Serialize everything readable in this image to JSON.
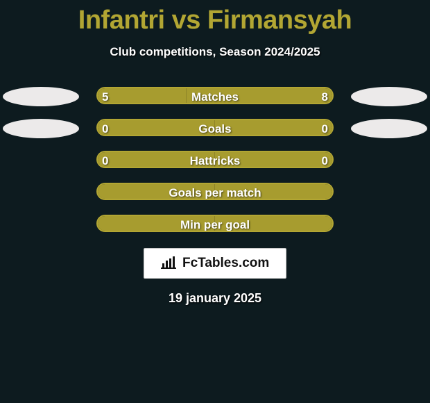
{
  "title": "Infantri vs Firmansyah",
  "subtitle": "Club competitions, Season 2024/2025",
  "date": "19 january 2025",
  "brand": "FcTables.com",
  "colors": {
    "accentBorder": "#b2a633",
    "barFillLeft": "#a79c2f",
    "barFillRight": "#a79c2f",
    "ellipse": "#eceaea",
    "bg": "#0d1b1f"
  },
  "rows": [
    {
      "label": "Matches",
      "left": "5",
      "right": "8",
      "leftPct": 38,
      "rightPct": 62,
      "showEllipses": true,
      "showValues": true
    },
    {
      "label": "Goals",
      "left": "0",
      "right": "0",
      "leftPct": 50,
      "rightPct": 50,
      "showEllipses": true,
      "showValues": true
    },
    {
      "label": "Hattricks",
      "left": "0",
      "right": "0",
      "leftPct": 50,
      "rightPct": 50,
      "showEllipses": false,
      "showValues": true
    },
    {
      "label": "Goals per match",
      "left": "",
      "right": "",
      "leftPct": 50,
      "rightPct": 50,
      "showEllipses": false,
      "showValues": false
    },
    {
      "label": "Min per goal",
      "left": "",
      "right": "",
      "leftPct": 50,
      "rightPct": 50,
      "showEllipses": false,
      "showValues": false
    }
  ]
}
